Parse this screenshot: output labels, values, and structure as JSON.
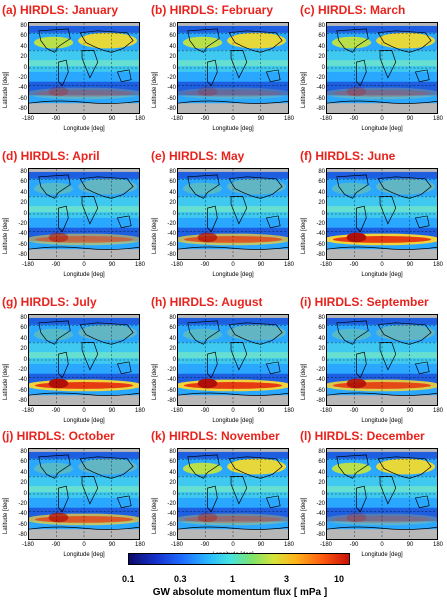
{
  "panels": [
    {
      "title": "(a) HIRDLS: January",
      "south_band": 0.25
    },
    {
      "title": "(b) HIRDLS: February",
      "south_band": 0.2
    },
    {
      "title": "(c) HIRDLS: March",
      "south_band": 0.25
    },
    {
      "title": "(d) HIRDLS: April",
      "south_band": 0.55
    },
    {
      "title": "(e) HIRDLS: May",
      "south_band": 0.75
    },
    {
      "title": "(f) HIRDLS: June",
      "south_band": 1.0
    },
    {
      "title": "(g) HIRDLS: July",
      "south_band": 1.0
    },
    {
      "title": "(h) HIRDLS: August",
      "south_band": 1.0
    },
    {
      "title": "(i) HIRDLS: September",
      "south_band": 0.9
    },
    {
      "title": "(j) HIRDLS: October",
      "south_band": 0.75
    },
    {
      "title": "(k) HIRDLS: November",
      "south_band": 0.35
    },
    {
      "title": "(l) HIRDLS: December",
      "south_band": 0.25
    }
  ],
  "axes": {
    "ylabel": "Latitude [deg]",
    "xlabel": "Longitude [deg]",
    "yticks": [
      "80",
      "60",
      "40",
      "20",
      "0",
      "-20",
      "-40",
      "-60",
      "-80"
    ],
    "xticks": [
      "-180",
      "-90",
      "0",
      "90",
      "180"
    ]
  },
  "colorbar": {
    "ticks": [
      "0.1",
      "0.3",
      "1",
      "3",
      "10"
    ],
    "title": "GW absolute momentum flux   [ mPa ]"
  }
}
